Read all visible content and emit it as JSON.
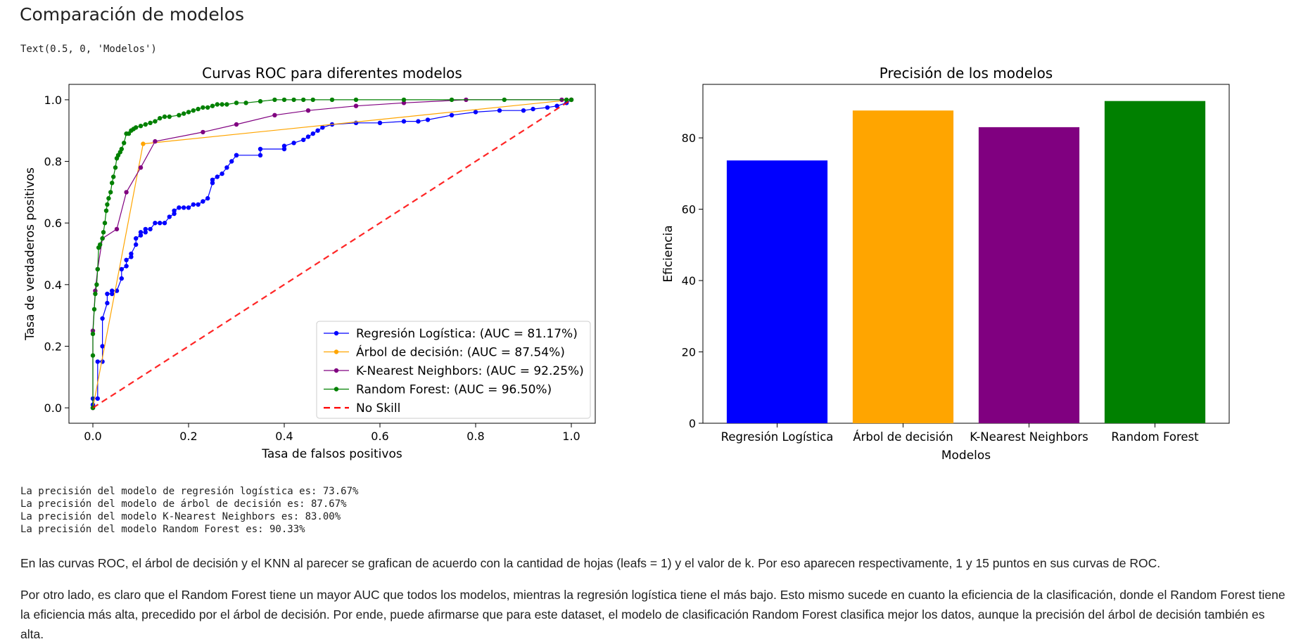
{
  "heading": "Comparación de modelos",
  "text_output": "Text(0.5, 0, 'Modelos')",
  "chart_data": [
    {
      "type": "line",
      "title": "Curvas ROC para diferentes modelos",
      "xlabel": "Tasa de falsos positivos",
      "ylabel": "Tasa de verdaderos positivos",
      "xlim": [
        -0.05,
        1.05
      ],
      "ylim": [
        -0.05,
        1.05
      ],
      "xticks": [
        "0.0",
        "0.2",
        "0.4",
        "0.6",
        "0.8",
        "1.0"
      ],
      "yticks": [
        "0.0",
        "0.2",
        "0.4",
        "0.6",
        "0.8",
        "1.0"
      ],
      "legend_position": "lower-right",
      "series": [
        {
          "name": "Regresión Logística: (AUC = 81.17%)",
          "color": "#0000ff",
          "x": [
            0,
            0,
            0,
            0.01,
            0.01,
            0.02,
            0.02,
            0.02,
            0.03,
            0.03,
            0.04,
            0.04,
            0.05,
            0.06,
            0.06,
            0.07,
            0.07,
            0.08,
            0.08,
            0.09,
            0.09,
            0.1,
            0.1,
            0.11,
            0.11,
            0.12,
            0.13,
            0.14,
            0.15,
            0.16,
            0.17,
            0.17,
            0.18,
            0.19,
            0.2,
            0.21,
            0.22,
            0.23,
            0.24,
            0.25,
            0.25,
            0.26,
            0.27,
            0.28,
            0.29,
            0.3,
            0.3,
            0.35,
            0.35,
            0.4,
            0.4,
            0.42,
            0.44,
            0.45,
            0.46,
            0.47,
            0.48,
            0.5,
            0.55,
            0.6,
            0.65,
            0.68,
            0.7,
            0.75,
            0.8,
            0.85,
            0.9,
            0.92,
            0.95,
            0.97,
            0.99,
            1.0
          ],
          "y": [
            0,
            0.01,
            0.03,
            0.03,
            0.15,
            0.15,
            0.2,
            0.29,
            0.34,
            0.37,
            0.37,
            0.38,
            0.38,
            0.42,
            0.45,
            0.46,
            0.48,
            0.49,
            0.5,
            0.53,
            0.55,
            0.56,
            0.57,
            0.57,
            0.58,
            0.58,
            0.6,
            0.6,
            0.6,
            0.62,
            0.63,
            0.64,
            0.65,
            0.65,
            0.65,
            0.66,
            0.66,
            0.67,
            0.68,
            0.73,
            0.74,
            0.75,
            0.76,
            0.78,
            0.8,
            0.82,
            0.82,
            0.82,
            0.84,
            0.84,
            0.85,
            0.86,
            0.87,
            0.88,
            0.89,
            0.9,
            0.91,
            0.92,
            0.925,
            0.925,
            0.93,
            0.93,
            0.935,
            0.95,
            0.96,
            0.965,
            0.965,
            0.97,
            0.975,
            0.98,
            0.99,
            1.0
          ]
        },
        {
          "name": "Árbol de decisión: (AUC = 87.54%)",
          "color": "#ffa500",
          "x": [
            0,
            0.105,
            1.0
          ],
          "y": [
            0,
            0.857,
            1.0
          ]
        },
        {
          "name": "K-Nearest Neighbors: (AUC = 92.25%)",
          "color": "#800080",
          "x": [
            0,
            0,
            0.005,
            0.01,
            0.02,
            0.05,
            0.07,
            0.1,
            0.13,
            0.23,
            0.3,
            0.38,
            0.45,
            0.55,
            0.65,
            0.78,
            0.98,
            1.0
          ],
          "y": [
            0,
            0.25,
            0.38,
            0.45,
            0.55,
            0.58,
            0.7,
            0.78,
            0.865,
            0.895,
            0.92,
            0.95,
            0.965,
            0.98,
            0.99,
            1.0,
            1.0,
            1.0
          ]
        },
        {
          "name": "Random Forest: (AUC = 96.50%)",
          "color": "#008000",
          "x": [
            0,
            0,
            0,
            0.003,
            0.005,
            0.008,
            0.01,
            0.012,
            0.015,
            0.02,
            0.022,
            0.025,
            0.028,
            0.03,
            0.033,
            0.037,
            0.04,
            0.043,
            0.047,
            0.05,
            0.053,
            0.057,
            0.06,
            0.065,
            0.07,
            0.075,
            0.08,
            0.085,
            0.09,
            0.1,
            0.11,
            0.12,
            0.13,
            0.14,
            0.15,
            0.16,
            0.18,
            0.19,
            0.2,
            0.21,
            0.22,
            0.23,
            0.24,
            0.25,
            0.26,
            0.27,
            0.28,
            0.3,
            0.32,
            0.35,
            0.38,
            0.4,
            0.42,
            0.44,
            0.46,
            0.5,
            0.55,
            0.65,
            0.75,
            0.86,
            0.99,
            1.0
          ],
          "y": [
            0,
            0.17,
            0.24,
            0.32,
            0.37,
            0.4,
            0.45,
            0.52,
            0.53,
            0.55,
            0.57,
            0.6,
            0.64,
            0.66,
            0.68,
            0.7,
            0.73,
            0.75,
            0.78,
            0.81,
            0.82,
            0.83,
            0.84,
            0.86,
            0.89,
            0.89,
            0.9,
            0.905,
            0.91,
            0.915,
            0.92,
            0.925,
            0.93,
            0.94,
            0.945,
            0.945,
            0.95,
            0.955,
            0.96,
            0.965,
            0.97,
            0.975,
            0.975,
            0.98,
            0.985,
            0.985,
            0.985,
            0.99,
            0.99,
            0.995,
            1.0,
            1.0,
            1.0,
            1.0,
            1.0,
            1.0,
            1.0,
            1.0,
            1.0,
            1.0,
            1.0,
            1.0
          ]
        },
        {
          "name": "No Skill",
          "color": "#ff0000",
          "dashed": true,
          "x": [
            0,
            1
          ],
          "y": [
            0,
            1
          ]
        }
      ]
    },
    {
      "type": "bar",
      "title": "Precisión de los modelos",
      "xlabel": "Modelos",
      "ylabel": "Eficiencia",
      "ylim": [
        0,
        95
      ],
      "yticks": [
        "0",
        "20",
        "40",
        "60",
        "80"
      ],
      "categories": [
        "Regresión Logística",
        "Árbol de decisión",
        "K-Nearest Neighbors",
        "Random Forest"
      ],
      "values": [
        73.67,
        87.67,
        83.0,
        90.33
      ],
      "colors": [
        "#0000ff",
        "#ffa500",
        "#800080",
        "#008000"
      ]
    }
  ],
  "output_lines": [
    "La precisión del modelo de regresión logística es: 73.67%",
    "La precisión del modelo de árbol de decisión es: 87.67%",
    "La precisión del modelo K-Nearest Neighbors es: 83.00%",
    "La precisión del modelo Random Forest es: 90.33%"
  ],
  "paragraph1": "En las curvas ROC, el árbol de decisión y el KNN al parecer se grafican de acuerdo con la cantidad de hojas (leafs = 1) y el valor de k. Por eso aparecen respectivamente, 1 y 15 puntos en sus curvas de ROC.",
  "paragraph2": "Por otro lado, es claro que el Random Forest tiene un mayor AUC que todos los modelos, mientras la regresión logística tiene el más bajo. Esto mismo sucede en cuanto la eficiencia de la clasificación, donde el Random Forest tiene la eficiencia más alta, precedido por el árbol de decisión. Por ende, puede afirmarse que para este dataset, el modelo de clasificación Random Forest clasifica mejor los datos, aunque la precisión del árbol de decisión también es alta."
}
